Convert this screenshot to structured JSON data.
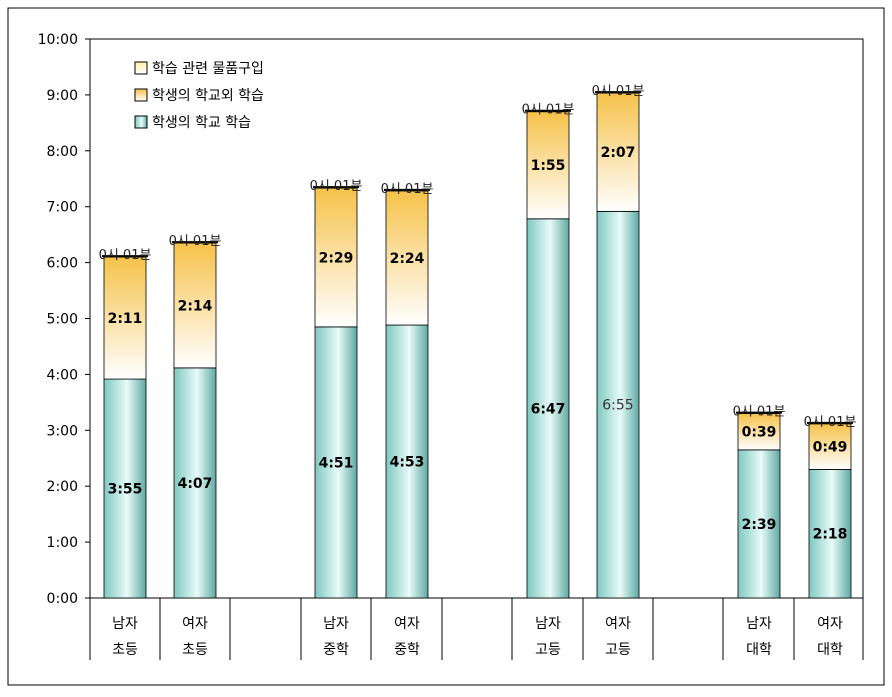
{
  "chart_data": {
    "type": "bar",
    "stacked": true,
    "y_unit": "hours (h:mm)",
    "ylim": [
      0,
      10
    ],
    "yticks": [
      "0:00",
      "1:00",
      "2:00",
      "3:00",
      "4:00",
      "5:00",
      "6:00",
      "7:00",
      "8:00",
      "9:00",
      "10:00"
    ],
    "categories": [
      {
        "line1": "남자",
        "line2": "초등"
      },
      {
        "line1": "여자",
        "line2": "초등"
      },
      {
        "line1": "남자",
        "line2": "중학"
      },
      {
        "line1": "여자",
        "line2": "중학"
      },
      {
        "line1": "남자",
        "line2": "고등"
      },
      {
        "line1": "여자",
        "line2": "고등"
      },
      {
        "line1": "남자",
        "line2": "대학"
      },
      {
        "line1": "여자",
        "line2": "대학"
      }
    ],
    "series": [
      {
        "name": "학생의 학교 학습",
        "values": [
          3.9167,
          4.1167,
          4.85,
          4.8833,
          6.7833,
          6.9167,
          2.65,
          2.3
        ],
        "labels": [
          "3:55",
          "4:07",
          "4:51",
          "4:53",
          "6:47",
          "6:55",
          "2:39",
          "2:18"
        ]
      },
      {
        "name": "학생의 학교외 학습",
        "values": [
          2.1833,
          2.2333,
          2.4833,
          2.4,
          1.9167,
          2.1167,
          0.65,
          0.8167
        ],
        "labels": [
          "2:11",
          "2:14",
          "2:29",
          "2:24",
          "1:55",
          "2:07",
          "0:39",
          "0:49"
        ]
      },
      {
        "name": "학습 관련 물품구입",
        "values": [
          0.0167,
          0.0167,
          0.0167,
          0.0167,
          0.0167,
          0.0167,
          0.0167,
          0.0167
        ],
        "labels": [
          "0시 01분",
          "0시 01분",
          "0시 01분",
          "0시 01분",
          "0시 01분",
          "0시 01분",
          "0시 01분",
          "0시 01분"
        ]
      }
    ],
    "legend": {
      "position": "top-left",
      "entries": [
        "학습 관련 물품구입",
        "학생의 학교외 학습",
        "학생의 학교 학습"
      ]
    },
    "colors": {
      "school": "#7fc8c0",
      "outside": "#f6c24a",
      "purchase": "#fff2a8",
      "axis": "#000000"
    },
    "grid": false
  }
}
